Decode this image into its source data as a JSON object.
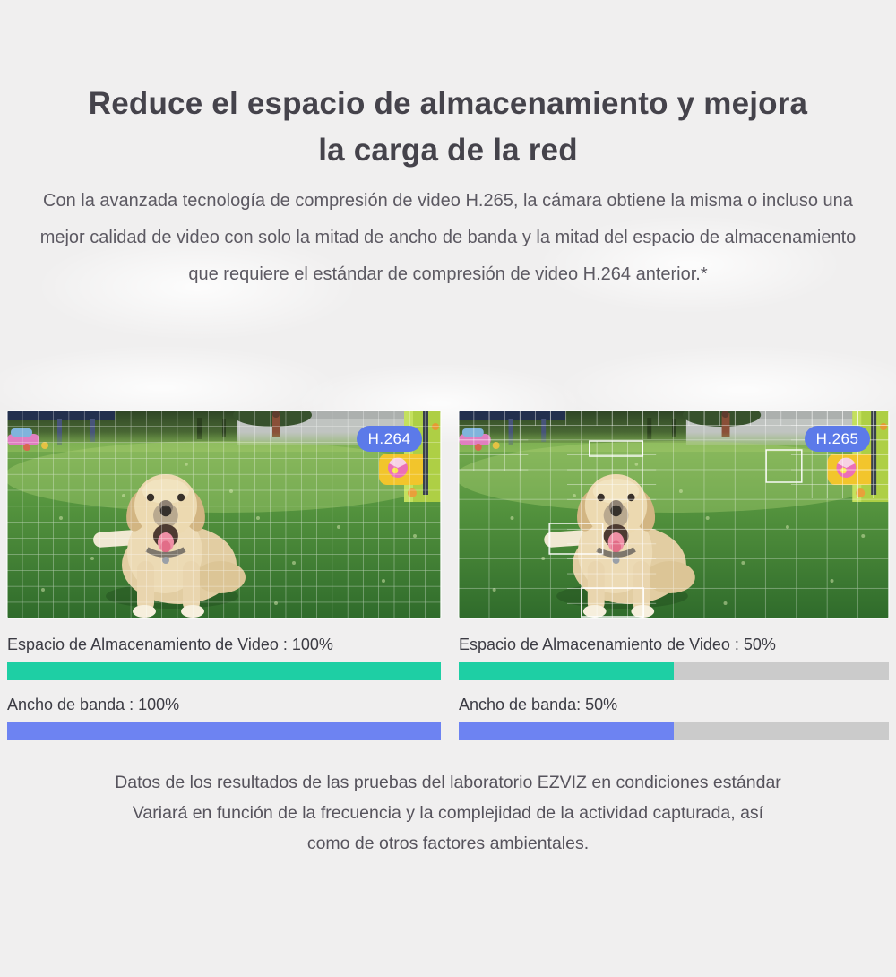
{
  "colors": {
    "background": "#f0efef",
    "title_text": "#45434b",
    "body_text": "#5c5962",
    "bar_label_text": "#3b3b43",
    "storage_bar": "#1ecfa4",
    "bandwidth_bar": "#6d83f2",
    "bar_track": "#cbcbcb",
    "badge_background": "#5c7ae9",
    "badge_text": "#ffffff"
  },
  "title": {
    "line1": "Reduce el espacio de almacenamiento y mejora",
    "line2": "la carga de la red"
  },
  "intro": "Con la avanzada tecnología de compresión de video H.265, la cámara obtiene la misma o incluso una mejor calidad de video con solo la mitad de ancho de banda y la mitad del espacio de almacenamiento que requiere el estándar de compresión de video H.264 anterior.*",
  "comparison": {
    "left": {
      "badge": "H.264",
      "bars": [
        {
          "label": "Espacio de Almacenamiento de Video : 100%",
          "value": 100
        },
        {
          "label": "Ancho de banda : 100%",
          "value": 100
        }
      ]
    },
    "right": {
      "badge": "H.265",
      "bars": [
        {
          "label": "Espacio de Almacenamiento de Video : 50%",
          "value": 50
        },
        {
          "label": "Ancho de banda: 50%",
          "value": 50
        }
      ]
    }
  },
  "footnote": {
    "lines": [
      "Datos de los resultados de las pruebas del laboratorio EZVIZ en condiciones estándar",
      "Variará en función de la frecuencia y la complejidad de la actividad capturada, así",
      "como de otros factores ambientales."
    ]
  }
}
